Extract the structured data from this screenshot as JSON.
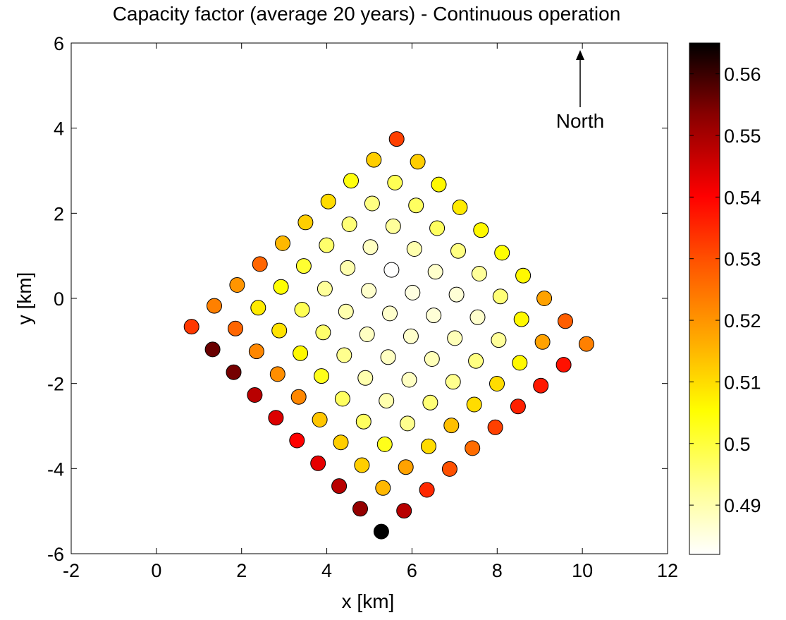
{
  "chart_data": {
    "type": "scatter",
    "title": "Capacity factor (average 20 years) - Continuous operation",
    "xlabel": "x [km]",
    "ylabel": "y [km]",
    "xlim": [
      -2,
      12
    ],
    "ylim": [
      -6,
      6
    ],
    "xticks": [
      "-2",
      "0",
      "2",
      "4",
      "6",
      "8",
      "10",
      "12"
    ],
    "yticks": [
      "6",
      "4",
      "2",
      "0",
      "-2",
      "-4",
      "-6"
    ],
    "annotation": "North",
    "colorbar": {
      "min": 0.482,
      "max": 0.565,
      "ticks": [
        "0.56",
        "0.55",
        "0.54",
        "0.53",
        "0.52",
        "0.51",
        "0.5",
        "0.49"
      ],
      "colormap": "hot-reversed"
    },
    "grid_params": {
      "origin": [
        5.28,
        -5.48
      ],
      "row_step": [
        -0.495,
        0.535
      ],
      "col_step": [
        0.535,
        0.49
      ],
      "rows": 10,
      "cols": 10
    },
    "points": [
      [
        0.565,
        0.548,
        0.535,
        0.53,
        0.526,
        0.532,
        0.536,
        0.537,
        0.538,
        0.523
      ],
      [
        0.552,
        0.515,
        0.518,
        0.51,
        0.514,
        0.51,
        0.51,
        0.506,
        0.518,
        0.528
      ],
      [
        0.548,
        0.512,
        0.503,
        0.493,
        0.495,
        0.493,
        0.494,
        0.492,
        0.506,
        0.518
      ],
      [
        0.543,
        0.512,
        0.497,
        0.49,
        0.488,
        0.489,
        0.489,
        0.487,
        0.495,
        0.506
      ],
      [
        0.54,
        0.513,
        0.497,
        0.49,
        0.488,
        0.487,
        0.486,
        0.486,
        0.492,
        0.505
      ],
      [
        0.544,
        0.522,
        0.503,
        0.493,
        0.488,
        0.487,
        0.485,
        0.487,
        0.494,
        0.506
      ],
      [
        0.548,
        0.521,
        0.506,
        0.496,
        0.49,
        0.487,
        0.482,
        0.49,
        0.497,
        0.508
      ],
      [
        0.555,
        0.522,
        0.509,
        0.498,
        0.492,
        0.49,
        0.488,
        0.492,
        0.497,
        0.506
      ],
      [
        0.556,
        0.527,
        0.508,
        0.505,
        0.501,
        0.496,
        0.495,
        0.494,
        0.498,
        0.512
      ],
      [
        0.533,
        0.523,
        0.52,
        0.527,
        0.515,
        0.512,
        0.51,
        0.504,
        0.512,
        0.532
      ]
    ]
  }
}
